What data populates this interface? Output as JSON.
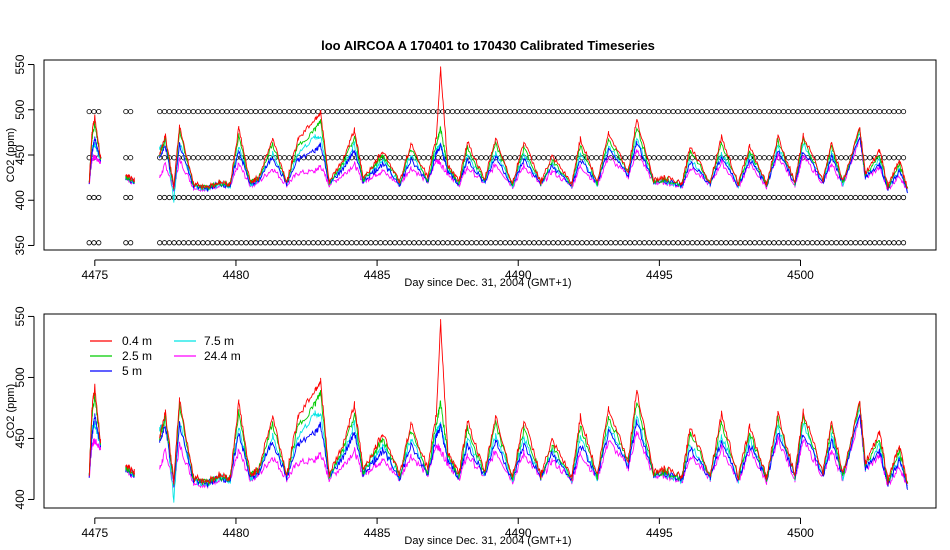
{
  "chart_data": [
    {
      "type": "line",
      "title": "loo   AIRCOA  A    170401  to  170430   Calibrated Timeseries",
      "xlabel": "Day since Dec. 31, 2004 (GMT+1)",
      "ylabel": "CO2 (ppm)",
      "xlim": [
        4473.2,
        4504.8
      ],
      "ylim": [
        345,
        555
      ],
      "xticks": [
        4475,
        4480,
        4485,
        4490,
        4495,
        4500
      ],
      "yticks": [
        350,
        400,
        450,
        500,
        550
      ],
      "grid": false,
      "calibration_levels_ppm": [
        353,
        403,
        447,
        498
      ],
      "series": [
        {
          "color": "#ff0000",
          "values_at": "shared_x"
        },
        {
          "color": "#00cc00",
          "values_at": "shared_x"
        },
        {
          "color": "#0000ff",
          "values_at": "shared_x"
        },
        {
          "color": "#00e5e5",
          "values_at": "shared_x"
        },
        {
          "color": "#ff00ff",
          "values_at": "shared_x"
        }
      ]
    },
    {
      "type": "line",
      "title": "",
      "xlabel": "Day since Dec. 31, 2004 (GMT+1)",
      "ylabel": "CO2 (ppm)",
      "xlim": [
        4473.2,
        4504.8
      ],
      "ylim": [
        393,
        552
      ],
      "xticks": [
        4475,
        4480,
        4485,
        4490,
        4495,
        4500
      ],
      "yticks": [
        400,
        450,
        500,
        550
      ],
      "grid": false,
      "legend_position": "top-left",
      "series": [
        {
          "name": "0.4 m",
          "color": "#ff0000"
        },
        {
          "name": "2.5 m",
          "color": "#00cc00"
        },
        {
          "name": "5 m",
          "color": "#0000ff"
        },
        {
          "name": "7.5 m",
          "color": "#00e5e5"
        },
        {
          "name": "24.4 m",
          "color": "#ff00ff"
        }
      ]
    }
  ],
  "shared_x": [
    4474.8,
    4474.9,
    4475.0,
    4475.2,
    4476.1,
    4476.4,
    4477.3,
    4477.5,
    4477.8,
    4478.0,
    4478.5,
    4479.0,
    4479.4,
    4479.8,
    4480.1,
    4480.5,
    4480.8,
    4481.3,
    4481.8,
    4482.2,
    4482.8,
    4483.0,
    4483.3,
    4483.8,
    4484.2,
    4484.5,
    4484.9,
    4485.2,
    4485.8,
    4486.2,
    4486.8,
    4487.1,
    4487.25,
    4487.5,
    4487.9,
    4488.2,
    4488.8,
    4489.2,
    4489.8,
    4490.2,
    4490.8,
    4491.2,
    4491.9,
    4492.2,
    4492.8,
    4493.2,
    4493.9,
    4494.2,
    4494.8,
    4495.2,
    4495.8,
    4496.1,
    4496.8,
    4497.2,
    4497.8,
    4498.2,
    4498.8,
    4499.2,
    4499.8,
    4500.1,
    4500.8,
    4501.1,
    4501.5,
    4502.1,
    4502.3,
    4502.8,
    4503.1,
    4503.5,
    4503.8
  ],
  "shared_series": {
    "red": [
      420,
      475,
      492,
      448,
      428,
      422,
      452,
      472,
      415,
      482,
      418,
      415,
      420,
      418,
      480,
      420,
      425,
      468,
      420,
      468,
      490,
      497,
      420,
      445,
      478,
      425,
      440,
      455,
      420,
      462,
      425,
      470,
      546,
      440,
      420,
      465,
      422,
      468,
      418,
      465,
      420,
      448,
      418,
      468,
      420,
      475,
      432,
      490,
      422,
      425,
      418,
      460,
      420,
      470,
      418,
      460,
      418,
      470,
      420,
      472,
      422,
      465,
      420,
      480,
      430,
      455,
      415,
      445,
      412
    ],
    "green": [
      420,
      468,
      485,
      446,
      426,
      421,
      450,
      468,
      414,
      478,
      416,
      414,
      419,
      417,
      472,
      419,
      424,
      462,
      419,
      460,
      478,
      488,
      419,
      442,
      470,
      423,
      437,
      450,
      419,
      456,
      423,
      462,
      480,
      437,
      419,
      458,
      421,
      462,
      417,
      458,
      419,
      444,
      417,
      460,
      419,
      468,
      430,
      482,
      421,
      423,
      417,
      455,
      419,
      462,
      417,
      455,
      417,
      466,
      419,
      468,
      421,
      460,
      419,
      478,
      428,
      450,
      414,
      440,
      411
    ],
    "blue": [
      419,
      452,
      468,
      444,
      425,
      420,
      448,
      460,
      413,
      462,
      415,
      413,
      418,
      416,
      455,
      418,
      422,
      448,
      418,
      445,
      455,
      462,
      418,
      435,
      455,
      421,
      432,
      440,
      418,
      444,
      421,
      452,
      460,
      432,
      418,
      445,
      420,
      448,
      416,
      445,
      418,
      438,
      416,
      445,
      418,
      455,
      428,
      465,
      420,
      421,
      416,
      442,
      418,
      448,
      416,
      445,
      416,
      455,
      418,
      455,
      420,
      448,
      418,
      470,
      426,
      440,
      413,
      432,
      410
    ],
    "cyan": [
      419,
      458,
      462,
      444,
      425,
      420,
      458,
      465,
      400,
      465,
      415,
      413,
      418,
      416,
      460,
      418,
      422,
      452,
      418,
      452,
      470,
      470,
      418,
      438,
      462,
      421,
      435,
      445,
      418,
      450,
      421,
      456,
      462,
      434,
      418,
      450,
      420,
      452,
      416,
      450,
      418,
      440,
      416,
      450,
      418,
      460,
      428,
      470,
      420,
      421,
      416,
      446,
      418,
      452,
      416,
      450,
      416,
      460,
      418,
      462,
      420,
      452,
      418,
      474,
      426,
      444,
      413,
      435,
      410
    ],
    "magenta": [
      418,
      445,
      448,
      442,
      424,
      419,
      425,
      440,
      412,
      445,
      414,
      412,
      417,
      415,
      440,
      417,
      420,
      435,
      417,
      430,
      432,
      438,
      417,
      428,
      440,
      420,
      428,
      432,
      417,
      436,
      420,
      445,
      440,
      430,
      417,
      436,
      419,
      440,
      415,
      438,
      417,
      432,
      415,
      438,
      417,
      448,
      426,
      455,
      419,
      420,
      415,
      436,
      417,
      442,
      415,
      440,
      415,
      450,
      417,
      448,
      419,
      440,
      417,
      468,
      424,
      436,
      412,
      428,
      409
    ]
  }
}
